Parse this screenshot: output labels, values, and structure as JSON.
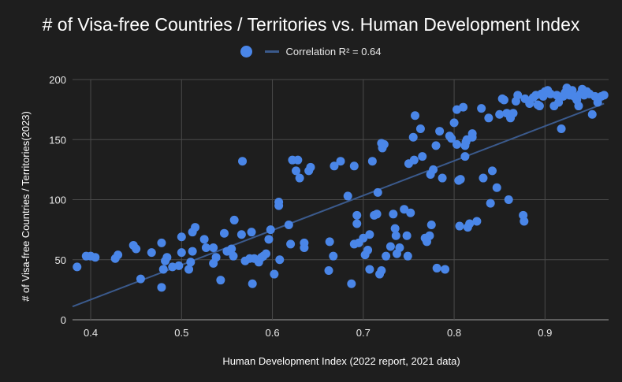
{
  "chart_data": {
    "type": "scatter",
    "title": "# of Visa-free Countries / Territories vs. Human Development Index",
    "xlabel": "Human Development Index (2022 report, 2021 data)",
    "ylabel": "# of Visa-free Countries / Territories(2023)",
    "xlim": [
      0.38,
      0.97
    ],
    "ylim": [
      0,
      200
    ],
    "xticks": [
      "0.4",
      "0.5",
      "0.6",
      "0.7",
      "0.8",
      "0.9"
    ],
    "yticks": [
      "0",
      "50",
      "100",
      "150",
      "200"
    ],
    "grid": true,
    "legend_position": "top",
    "colors": {
      "points": "#4a86e8",
      "trendline": "#3b5a8c",
      "background": "#1e1e1e",
      "grid": "#4a4a4a"
    },
    "series": [
      {
        "name": "",
        "points": [
          [
            0.385,
            44
          ],
          [
            0.395,
            53
          ],
          [
            0.4,
            53
          ],
          [
            0.405,
            52
          ],
          [
            0.427,
            51
          ],
          [
            0.43,
            54
          ],
          [
            0.447,
            62
          ],
          [
            0.45,
            59
          ],
          [
            0.455,
            34
          ],
          [
            0.467,
            56
          ],
          [
            0.478,
            64
          ],
          [
            0.478,
            27
          ],
          [
            0.48,
            42
          ],
          [
            0.482,
            49
          ],
          [
            0.484,
            52
          ],
          [
            0.49,
            44
          ],
          [
            0.497,
            45
          ],
          [
            0.5,
            69
          ],
          [
            0.5,
            56
          ],
          [
            0.508,
            42
          ],
          [
            0.51,
            48
          ],
          [
            0.512,
            57
          ],
          [
            0.512,
            73
          ],
          [
            0.515,
            77
          ],
          [
            0.525,
            67
          ],
          [
            0.527,
            60
          ],
          [
            0.535,
            60
          ],
          [
            0.535,
            47
          ],
          [
            0.538,
            52
          ],
          [
            0.543,
            33
          ],
          [
            0.547,
            72
          ],
          [
            0.55,
            57
          ],
          [
            0.555,
            59
          ],
          [
            0.557,
            53
          ],
          [
            0.558,
            83
          ],
          [
            0.566,
            71
          ],
          [
            0.567,
            132
          ],
          [
            0.57,
            49
          ],
          [
            0.575,
            51
          ],
          [
            0.577,
            73
          ],
          [
            0.578,
            30
          ],
          [
            0.58,
            51
          ],
          [
            0.585,
            48
          ],
          [
            0.588,
            52
          ],
          [
            0.59,
            53
          ],
          [
            0.593,
            55
          ],
          [
            0.596,
            67
          ],
          [
            0.598,
            75
          ],
          [
            0.602,
            38
          ],
          [
            0.607,
            98
          ],
          [
            0.607,
            95
          ],
          [
            0.608,
            50
          ],
          [
            0.618,
            79
          ],
          [
            0.62,
            63
          ],
          [
            0.622,
            133
          ],
          [
            0.626,
            124
          ],
          [
            0.628,
            133
          ],
          [
            0.63,
            118
          ],
          [
            0.635,
            60
          ],
          [
            0.635,
            64
          ],
          [
            0.64,
            124
          ],
          [
            0.642,
            127
          ],
          [
            0.662,
            41
          ],
          [
            0.663,
            65
          ],
          [
            0.667,
            53
          ],
          [
            0.668,
            128
          ],
          [
            0.675,
            132
          ],
          [
            0.683,
            103
          ],
          [
            0.687,
            30
          ],
          [
            0.69,
            128
          ],
          [
            0.69,
            63
          ],
          [
            0.693,
            80
          ],
          [
            0.693,
            87
          ],
          [
            0.695,
            64
          ],
          [
            0.7,
            68
          ],
          [
            0.702,
            54
          ],
          [
            0.705,
            58
          ],
          [
            0.707,
            42
          ],
          [
            0.707,
            71
          ],
          [
            0.71,
            132
          ],
          [
            0.712,
            87
          ],
          [
            0.715,
            88
          ],
          [
            0.716,
            106
          ],
          [
            0.718,
            38
          ],
          [
            0.72,
            41
          ],
          [
            0.72,
            147
          ],
          [
            0.721,
            143
          ],
          [
            0.723,
            146
          ],
          [
            0.725,
            53
          ],
          [
            0.73,
            61
          ],
          [
            0.733,
            88
          ],
          [
            0.735,
            76
          ],
          [
            0.737,
            55
          ],
          [
            0.736,
            70
          ],
          [
            0.74,
            60
          ],
          [
            0.745,
            92
          ],
          [
            0.748,
            70
          ],
          [
            0.749,
            53
          ],
          [
            0.75,
            130
          ],
          [
            0.752,
            89
          ],
          [
            0.755,
            152
          ],
          [
            0.756,
            133
          ],
          [
            0.757,
            170
          ],
          [
            0.763,
            159
          ],
          [
            0.765,
            136
          ],
          [
            0.768,
            68
          ],
          [
            0.77,
            65
          ],
          [
            0.773,
            70
          ],
          [
            0.774,
            121
          ],
          [
            0.775,
            79
          ],
          [
            0.777,
            125
          ],
          [
            0.78,
            145
          ],
          [
            0.781,
            43
          ],
          [
            0.784,
            157
          ],
          [
            0.787,
            118
          ],
          [
            0.79,
            42
          ],
          [
            0.795,
            153
          ],
          [
            0.797,
            151
          ],
          [
            0.8,
            164
          ],
          [
            0.803,
            175
          ],
          [
            0.803,
            146
          ],
          [
            0.805,
            116
          ],
          [
            0.806,
            78
          ],
          [
            0.807,
            117
          ],
          [
            0.81,
            177
          ],
          [
            0.812,
            145
          ],
          [
            0.812,
            136
          ],
          [
            0.813,
            148
          ],
          [
            0.814,
            150
          ],
          [
            0.815,
            77
          ],
          [
            0.817,
            80
          ],
          [
            0.82,
            152
          ],
          [
            0.82,
            155
          ],
          [
            0.825,
            82
          ],
          [
            0.83,
            176
          ],
          [
            0.832,
            118
          ],
          [
            0.838,
            168
          ],
          [
            0.84,
            97
          ],
          [
            0.842,
            124
          ],
          [
            0.847,
            110
          ],
          [
            0.85,
            171
          ],
          [
            0.853,
            184
          ],
          [
            0.855,
            183
          ],
          [
            0.858,
            172
          ],
          [
            0.86,
            100
          ],
          [
            0.862,
            168
          ],
          [
            0.865,
            172
          ],
          [
            0.868,
            182
          ],
          [
            0.87,
            187
          ],
          [
            0.876,
            87
          ],
          [
            0.877,
            82
          ],
          [
            0.878,
            184
          ],
          [
            0.883,
            180
          ],
          [
            0.887,
            185
          ],
          [
            0.89,
            187
          ],
          [
            0.892,
            179
          ],
          [
            0.894,
            178
          ],
          [
            0.896,
            188
          ],
          [
            0.898,
            186
          ],
          [
            0.9,
            190
          ],
          [
            0.903,
            191
          ],
          [
            0.906,
            188
          ],
          [
            0.91,
            178
          ],
          [
            0.913,
            187
          ],
          [
            0.915,
            181
          ],
          [
            0.918,
            159
          ],
          [
            0.92,
            186
          ],
          [
            0.922,
            189
          ],
          [
            0.924,
            193
          ],
          [
            0.927,
            187
          ],
          [
            0.93,
            191
          ],
          [
            0.932,
            186
          ],
          [
            0.935,
            183
          ],
          [
            0.937,
            178
          ],
          [
            0.939,
            188
          ],
          [
            0.941,
            192
          ],
          [
            0.943,
            187
          ],
          [
            0.946,
            190
          ],
          [
            0.949,
            188
          ],
          [
            0.952,
            171
          ],
          [
            0.955,
            186
          ],
          [
            0.958,
            181
          ],
          [
            0.962,
            186
          ],
          [
            0.965,
            187
          ]
        ]
      }
    ],
    "trendline": {
      "label": "Correlation R² = 0.64",
      "x": [
        0.38,
        0.965
      ],
      "y": [
        11,
        180
      ]
    }
  }
}
